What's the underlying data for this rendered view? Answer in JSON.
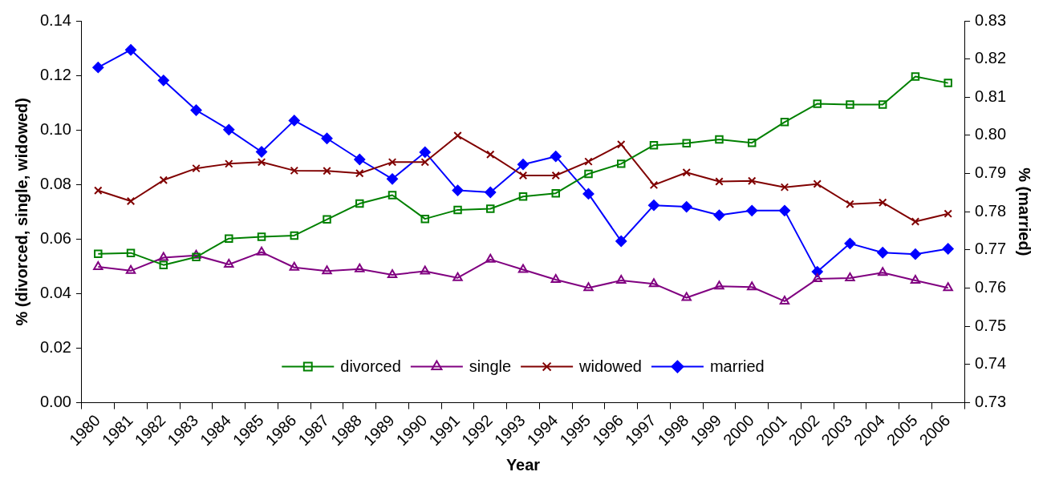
{
  "chart_data": {
    "type": "line",
    "xlabel": "Year",
    "ylabel": "% (divorced, single, widowed)",
    "y2label": "% (married)",
    "categories": [
      "1980",
      "1981",
      "1982",
      "1983",
      "1984",
      "1985",
      "1986",
      "1987",
      "1988",
      "1989",
      "1990",
      "1991",
      "1992",
      "1993",
      "1994",
      "1995",
      "1996",
      "1997",
      "1998",
      "1999",
      "2000",
      "2001",
      "2002",
      "2003",
      "2004",
      "2005",
      "2006"
    ],
    "series": [
      {
        "name": "divorced",
        "color": "#008000",
        "marker": "square",
        "values": [
          0.0546,
          0.0549,
          0.0505,
          0.0534,
          0.0602,
          0.0608,
          0.0613,
          0.0672,
          0.073,
          0.0761,
          0.0674,
          0.0707,
          0.0711,
          0.0756,
          0.0768,
          0.0839,
          0.0876,
          0.0944,
          0.0951,
          0.0965,
          0.0953,
          0.1029,
          0.1096,
          0.1093,
          0.1093,
          0.1196,
          0.1172
        ]
      },
      {
        "name": "single",
        "color": "#800080",
        "marker": "triangle",
        "values": [
          0.0498,
          0.0484,
          0.0532,
          0.054,
          0.0507,
          0.0552,
          0.0496,
          0.0483,
          0.049,
          0.0469,
          0.0482,
          0.0458,
          0.0525,
          0.0488,
          0.0451,
          0.0421,
          0.0448,
          0.0436,
          0.0385,
          0.0427,
          0.0424,
          0.0372,
          0.0454,
          0.0457,
          0.0477,
          0.0448,
          0.0421
        ]
      },
      {
        "name": "widowed",
        "color": "#800000",
        "marker": "cross",
        "values": [
          0.0778,
          0.0739,
          0.0816,
          0.0859,
          0.0876,
          0.0882,
          0.0851,
          0.085,
          0.0841,
          0.0882,
          0.0882,
          0.0979,
          0.091,
          0.0833,
          0.0833,
          0.0884,
          0.0947,
          0.0798,
          0.0844,
          0.0811,
          0.0813,
          0.079,
          0.0802,
          0.0728,
          0.0734,
          0.0664,
          0.0693
        ]
      },
      {
        "name": "married",
        "color": "#0000ff",
        "marker": "diamond",
        "axis": "y2",
        "values": [
          0.8178,
          0.8224,
          0.8144,
          0.8066,
          0.8015,
          0.7957,
          0.8039,
          0.7992,
          0.7937,
          0.7886,
          0.7956,
          0.7856,
          0.7851,
          0.7924,
          0.7945,
          0.7847,
          0.7723,
          0.7817,
          0.7813,
          0.7791,
          0.7803,
          0.7803,
          0.7643,
          0.7717,
          0.7693,
          0.7689,
          0.7703
        ]
      }
    ],
    "ylim": [
      0,
      0.14
    ],
    "yticks": [
      {
        "value": 0,
        "label": "0.00"
      },
      0.02,
      0.04,
      0.06,
      0.08,
      {
        "value": 0.1,
        "label": "0.10"
      },
      0.12,
      0.14
    ],
    "y2lim": [
      0.73,
      0.83
    ],
    "y2ticks": [
      0.73,
      0.74,
      0.75,
      0.76,
      0.77,
      0.78,
      0.79,
      {
        "value": 0.8,
        "label": "0.80"
      },
      0.81,
      0.82,
      0.83
    ],
    "legend": "bottom",
    "grid": false,
    "line_style": "solid"
  }
}
